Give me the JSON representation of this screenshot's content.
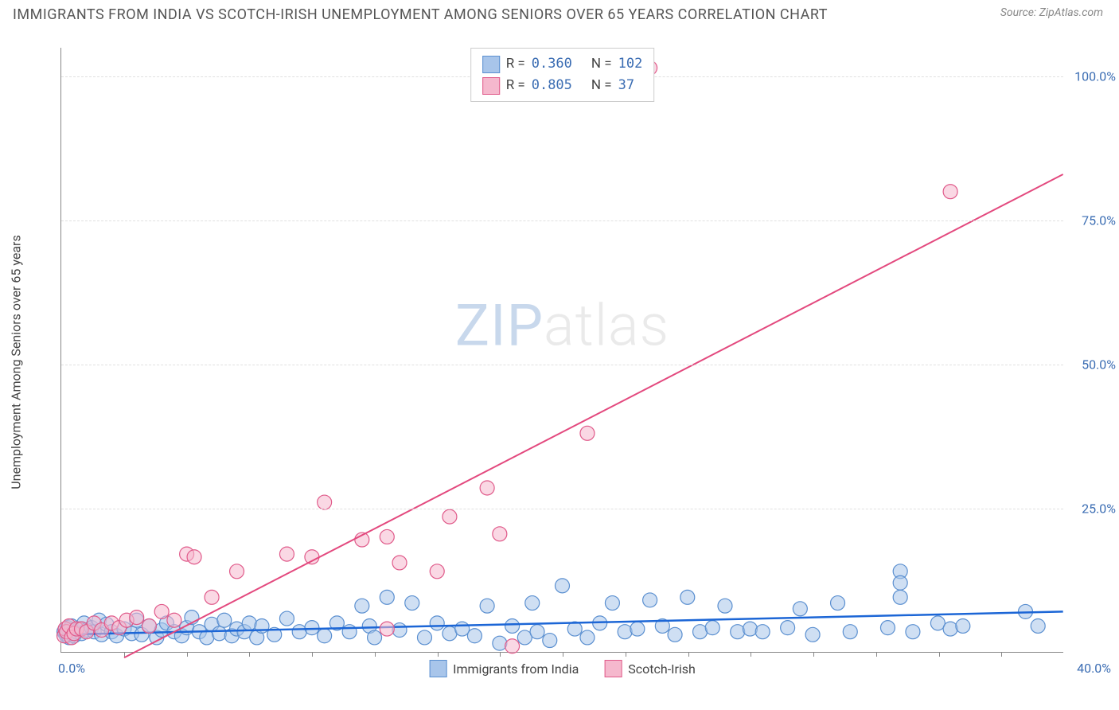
{
  "header": {
    "title": "IMMIGRANTS FROM INDIA VS SCOTCH-IRISH UNEMPLOYMENT AMONG SENIORS OVER 65 YEARS CORRELATION CHART",
    "source": "Source: ZipAtlas.com"
  },
  "watermark": {
    "part1": "ZIP",
    "part2": "atlas"
  },
  "chart": {
    "type": "scatter",
    "y_axis": {
      "label": "Unemployment Among Seniors over 65 years",
      "min": 0,
      "max": 105,
      "ticks": [
        25,
        50,
        75,
        100
      ],
      "tick_labels": [
        "25.0%",
        "50.0%",
        "75.0%",
        "100.0%"
      ],
      "grid_color": "#e0e0e0",
      "label_color": "#3b6db3"
    },
    "x_axis": {
      "min": 0,
      "max": 40,
      "start_label": "0.0%",
      "end_label": "40.0%",
      "tick_step": 2.5,
      "label_color": "#3b6db3"
    },
    "legend_top": {
      "rows": [
        {
          "fill": "#a8c5ea",
          "stroke": "#5a8fd0",
          "r_label": "R =",
          "r": "0.360",
          "n_label": "N =",
          "n": "102"
        },
        {
          "fill": "#f5b8cd",
          "stroke": "#e05a8a",
          "r_label": "R =",
          "r": "0.805",
          "n_label": "N =",
          "n": " 37"
        }
      ]
    },
    "legend_bottom": {
      "items": [
        {
          "fill": "#a8c5ea",
          "stroke": "#5a8fd0",
          "label": "Immigrants from India"
        },
        {
          "fill": "#f5b8cd",
          "stroke": "#e05a8a",
          "label": "Scotch-Irish"
        }
      ]
    },
    "series": [
      {
        "name": "Immigrants from India",
        "fill": "#a8c5ea",
        "stroke": "#5a8fd0",
        "fill_opacity": 0.55,
        "r": 9,
        "trend_color": "#1c66d6",
        "trend_width": 2.5,
        "trend_x1": 0,
        "trend_y1": 3.0,
        "trend_x2": 40,
        "trend_y2": 7.0,
        "points": [
          [
            0.1,
            3.5
          ],
          [
            0.15,
            3.2
          ],
          [
            0.2,
            2.8
          ],
          [
            0.25,
            4.2
          ],
          [
            0.25,
            3.0
          ],
          [
            0.3,
            2.5
          ],
          [
            0.3,
            3.8
          ],
          [
            0.4,
            4.5
          ],
          [
            0.4,
            3.2
          ],
          [
            0.5,
            2.8
          ],
          [
            0.6,
            3.5
          ],
          [
            0.7,
            4.0
          ],
          [
            0.8,
            3.2
          ],
          [
            0.9,
            5.0
          ],
          [
            1.0,
            3.8
          ],
          [
            1.2,
            4.2
          ],
          [
            1.3,
            3.5
          ],
          [
            1.5,
            5.5
          ],
          [
            1.6,
            3.0
          ],
          [
            1.8,
            4.8
          ],
          [
            2.0,
            3.5
          ],
          [
            2.2,
            2.8
          ],
          [
            2.5,
            4.0
          ],
          [
            2.8,
            3.2
          ],
          [
            3.0,
            5.5
          ],
          [
            3.2,
            3.0
          ],
          [
            3.5,
            4.5
          ],
          [
            3.8,
            2.5
          ],
          [
            4.0,
            3.8
          ],
          [
            4.2,
            5.0
          ],
          [
            4.5,
            3.5
          ],
          [
            4.8,
            2.8
          ],
          [
            5.0,
            4.2
          ],
          [
            5.2,
            6.0
          ],
          [
            5.5,
            3.5
          ],
          [
            5.8,
            2.5
          ],
          [
            6.0,
            4.8
          ],
          [
            6.3,
            3.2
          ],
          [
            6.5,
            5.5
          ],
          [
            6.8,
            2.8
          ],
          [
            7.0,
            4.0
          ],
          [
            7.3,
            3.5
          ],
          [
            7.5,
            5.0
          ],
          [
            7.8,
            2.5
          ],
          [
            8.0,
            4.5
          ],
          [
            8.5,
            3.0
          ],
          [
            9.0,
            5.8
          ],
          [
            9.5,
            3.5
          ],
          [
            10.0,
            4.2
          ],
          [
            10.5,
            2.8
          ],
          [
            11.0,
            5.0
          ],
          [
            11.5,
            3.5
          ],
          [
            12.0,
            8.0
          ],
          [
            12.3,
            4.5
          ],
          [
            12.5,
            2.5
          ],
          [
            13.0,
            9.5
          ],
          [
            13.5,
            3.8
          ],
          [
            14.0,
            8.5
          ],
          [
            14.5,
            2.5
          ],
          [
            15.0,
            5.0
          ],
          [
            15.5,
            3.2
          ],
          [
            16.0,
            4.0
          ],
          [
            16.5,
            2.8
          ],
          [
            17.0,
            8.0
          ],
          [
            17.5,
            1.5
          ],
          [
            18.0,
            4.5
          ],
          [
            18.5,
            2.5
          ],
          [
            18.8,
            8.5
          ],
          [
            19.0,
            3.5
          ],
          [
            19.5,
            2.0
          ],
          [
            20.0,
            11.5
          ],
          [
            20.5,
            4.0
          ],
          [
            21.0,
            2.5
          ],
          [
            21.5,
            5.0
          ],
          [
            22.0,
            8.5
          ],
          [
            22.5,
            3.5
          ],
          [
            23.0,
            4.0
          ],
          [
            23.5,
            9.0
          ],
          [
            24.0,
            4.5
          ],
          [
            24.5,
            3.0
          ],
          [
            25.0,
            9.5
          ],
          [
            25.5,
            3.5
          ],
          [
            26.0,
            4.2
          ],
          [
            26.5,
            8.0
          ],
          [
            27.0,
            3.5
          ],
          [
            27.5,
            4.0
          ],
          [
            28.0,
            3.5
          ],
          [
            29.0,
            4.2
          ],
          [
            29.5,
            7.5
          ],
          [
            30.0,
            3.0
          ],
          [
            31.0,
            8.5
          ],
          [
            31.5,
            3.5
          ],
          [
            33.0,
            4.2
          ],
          [
            33.5,
            14.0
          ],
          [
            33.5,
            12.0
          ],
          [
            33.5,
            9.5
          ],
          [
            34.0,
            3.5
          ],
          [
            35.0,
            5.0
          ],
          [
            35.5,
            4.0
          ],
          [
            36.0,
            4.5
          ],
          [
            38.5,
            7.0
          ],
          [
            39.0,
            4.5
          ]
        ]
      },
      {
        "name": "Scotch-Irish",
        "fill": "#f5b8cd",
        "stroke": "#e05a8a",
        "fill_opacity": 0.55,
        "r": 9,
        "trend_color": "#e3497e",
        "trend_width": 2,
        "trend_x1": 2.5,
        "trend_y1": -1.0,
        "trend_x2": 40,
        "trend_y2": 83.0,
        "points": [
          [
            0.1,
            2.8
          ],
          [
            0.15,
            4.0
          ],
          [
            0.2,
            3.5
          ],
          [
            0.3,
            4.5
          ],
          [
            0.4,
            2.5
          ],
          [
            0.5,
            3.2
          ],
          [
            0.6,
            4.0
          ],
          [
            0.8,
            4.0
          ],
          [
            1.0,
            3.5
          ],
          [
            1.3,
            5.0
          ],
          [
            1.6,
            3.8
          ],
          [
            2.0,
            5.0
          ],
          [
            2.3,
            4.2
          ],
          [
            2.6,
            5.5
          ],
          [
            3.0,
            6.0
          ],
          [
            3.5,
            4.5
          ],
          [
            4.0,
            7.0
          ],
          [
            4.5,
            5.5
          ],
          [
            5.0,
            17.0
          ],
          [
            5.3,
            16.5
          ],
          [
            6.0,
            9.5
          ],
          [
            7.0,
            14.0
          ],
          [
            9.0,
            17.0
          ],
          [
            10.0,
            16.5
          ],
          [
            10.5,
            26.0
          ],
          [
            12.0,
            19.5
          ],
          [
            13.0,
            20.0
          ],
          [
            13.0,
            4.0
          ],
          [
            13.5,
            15.5
          ],
          [
            15.0,
            14.0
          ],
          [
            15.5,
            23.5
          ],
          [
            17.0,
            28.5
          ],
          [
            17.5,
            20.5
          ],
          [
            18.0,
            1.0
          ],
          [
            21.0,
            38.0
          ],
          [
            23.5,
            101.5
          ],
          [
            35.5,
            80.0
          ]
        ]
      }
    ]
  }
}
